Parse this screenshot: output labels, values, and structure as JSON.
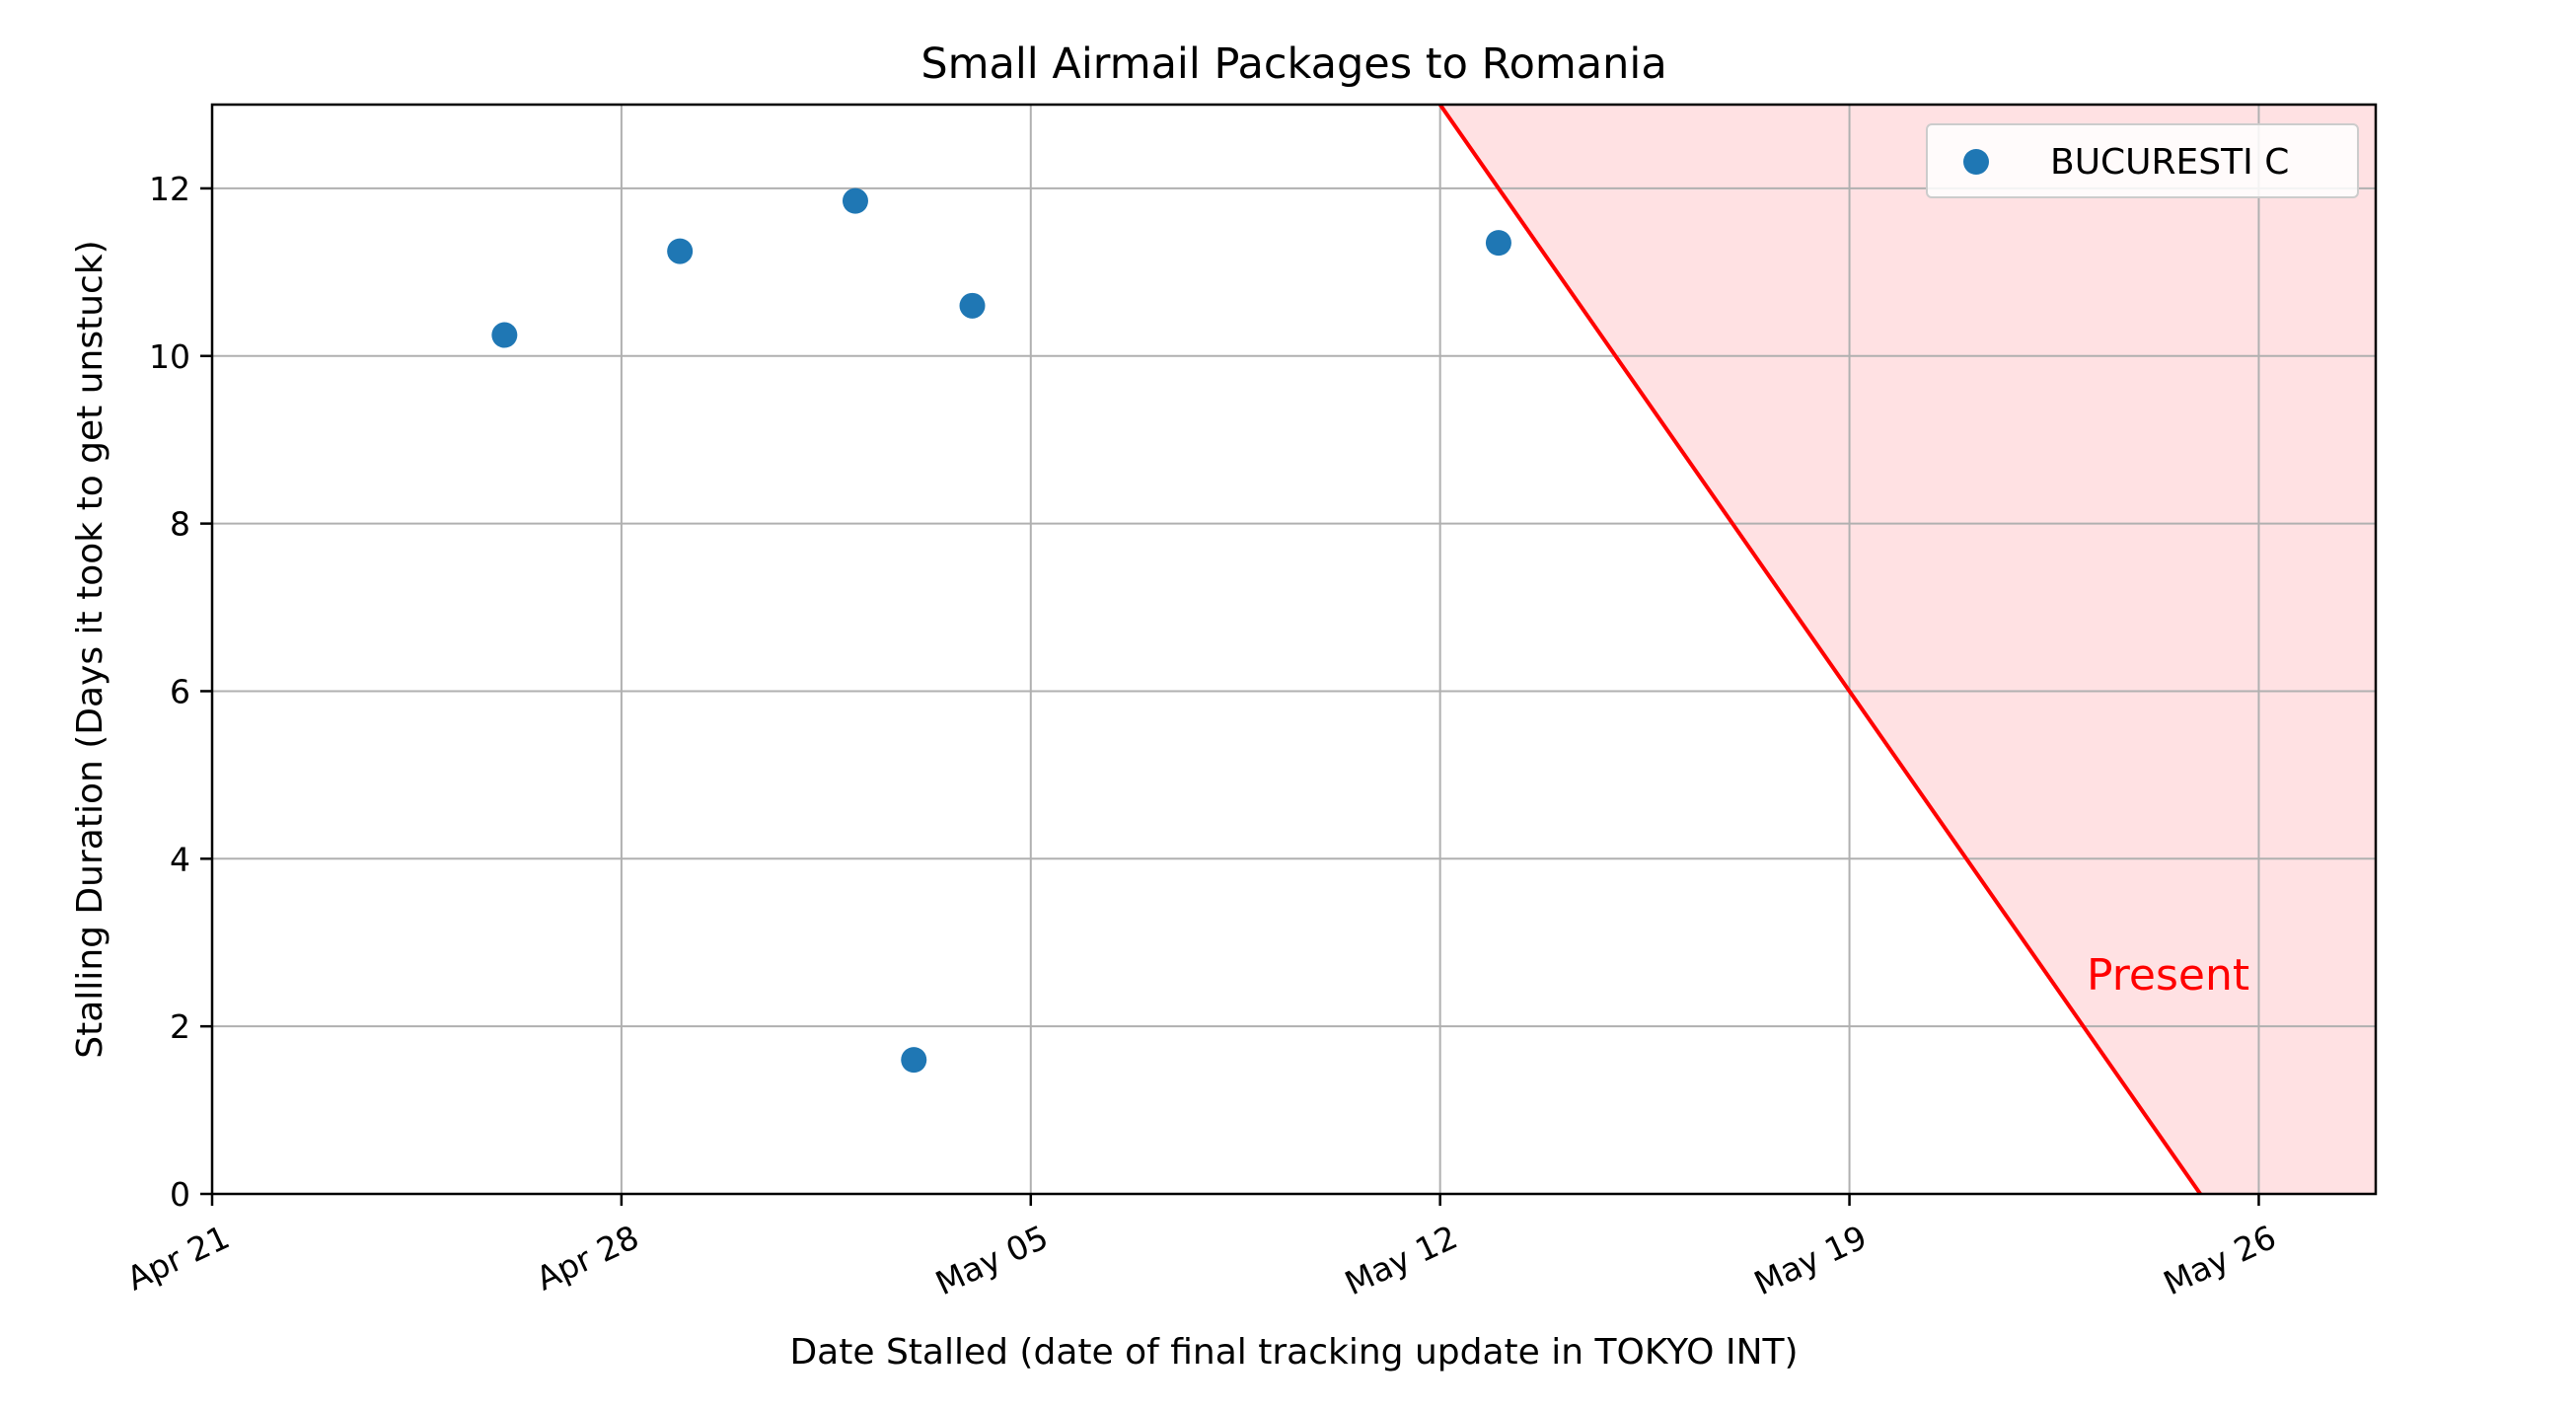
{
  "chart_data": {
    "type": "scatter",
    "title": "Small Airmail Packages to Romania",
    "xlabel": "Date Stalled (date of final tracking update in TOKYO INT)",
    "ylabel": "Stalling Duration (Days it took to get unstuck)",
    "x_axis_type": "date",
    "xlim": [
      "2024-04-21",
      "2024-05-28"
    ],
    "ylim": [
      0,
      13
    ],
    "x_ticks": [
      {
        "date": "2024-04-21",
        "label": "Apr 21"
      },
      {
        "date": "2024-04-28",
        "label": "Apr 28"
      },
      {
        "date": "2024-05-05",
        "label": "May 05"
      },
      {
        "date": "2024-05-12",
        "label": "May 12"
      },
      {
        "date": "2024-05-19",
        "label": "May 19"
      },
      {
        "date": "2024-05-26",
        "label": "May 26"
      }
    ],
    "y_ticks": [
      0,
      2,
      4,
      6,
      8,
      10,
      12
    ],
    "grid": true,
    "legend_position": "top-right",
    "series": [
      {
        "name": "BUCURESTI C",
        "color": "#1f77b4",
        "points": [
          {
            "x": "2024-04-26",
            "y": 10.25
          },
          {
            "x": "2024-04-29",
            "y": 11.25
          },
          {
            "x": "2024-05-02",
            "y": 11.85
          },
          {
            "x": "2024-05-03",
            "y": 1.6
          },
          {
            "x": "2024-05-04",
            "y": 10.6
          },
          {
            "x": "2024-05-13",
            "y": 11.35
          }
        ]
      }
    ],
    "present_line": {
      "label": "Present",
      "color": "#ff0000",
      "fill_color": "#ffe1e3",
      "points": [
        {
          "x": "2024-05-12",
          "y": 13
        },
        {
          "x": "2024-05-25",
          "y": 0
        }
      ]
    }
  }
}
